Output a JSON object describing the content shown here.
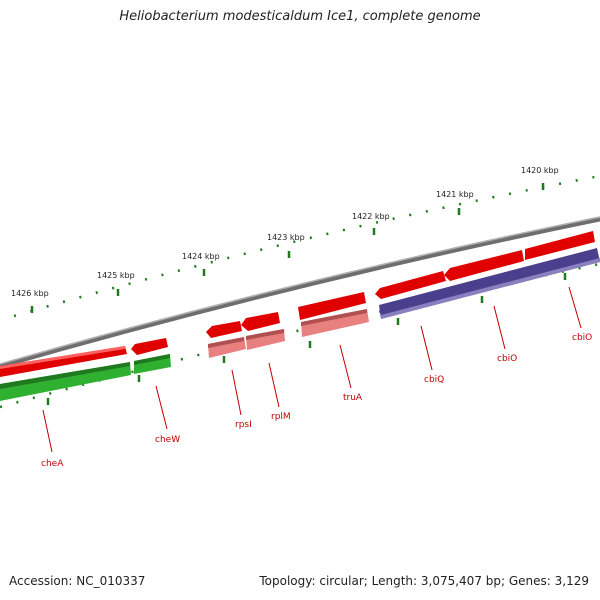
{
  "title": "Heliobacterium modesticaldum Ice1, complete genome",
  "footer": {
    "accession": "Accession: NC_010337",
    "summary": "Topology: circular; Length: 3,075,407 bp; Genes: 3,129"
  },
  "scale_ticks": [
    {
      "label": "1426 kbp"
    },
    {
      "label": "1425 kbp"
    },
    {
      "label": "1424 kbp"
    },
    {
      "label": "1423 kbp"
    },
    {
      "label": "1422 kbp"
    },
    {
      "label": "1421 kbp"
    },
    {
      "label": "1420 kbp"
    }
  ],
  "genes": [
    {
      "name": "cheA"
    },
    {
      "name": "cheW"
    },
    {
      "name": "rpsI"
    },
    {
      "name": "rplM"
    },
    {
      "name": "truA"
    },
    {
      "name": "cbiQ"
    },
    {
      "name": "cbiO"
    },
    {
      "name": "cbiO"
    }
  ],
  "colors": {
    "backbone": "#808080",
    "gene_red": "#e00000",
    "gene_pink": "#e88080",
    "gene_green": "#30b030",
    "gene_purple": "#4a3f8c",
    "tick": "#1f7a1f",
    "label": "#c00000"
  }
}
